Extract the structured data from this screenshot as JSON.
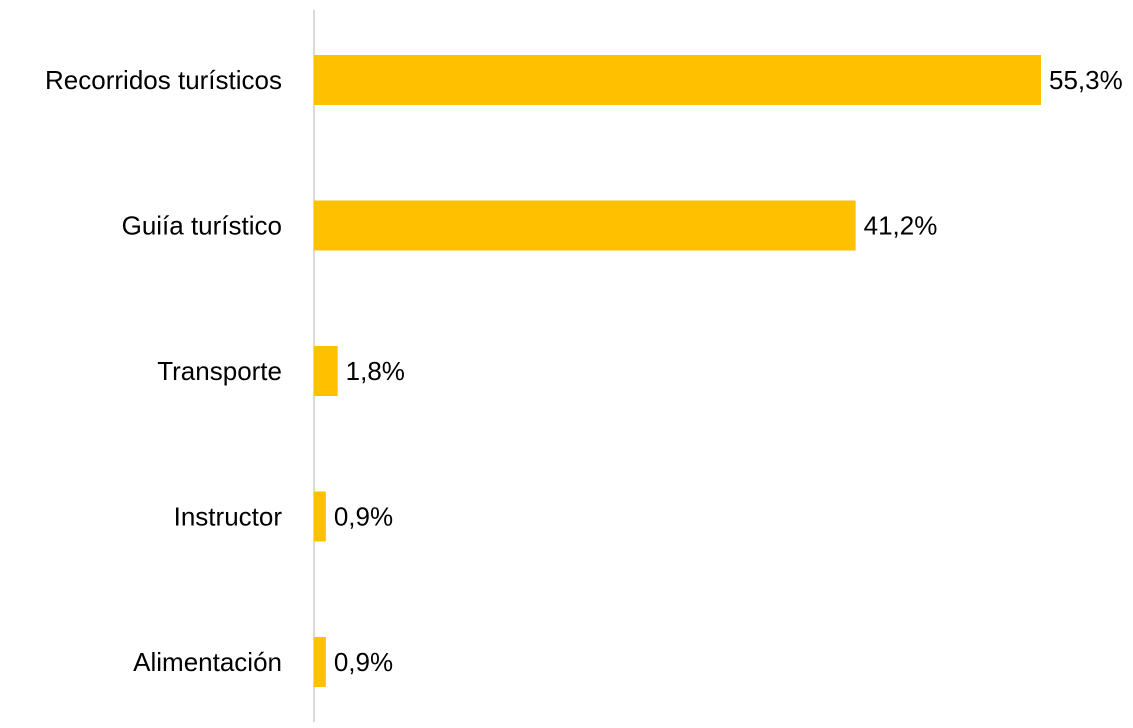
{
  "chart_data": {
    "type": "bar",
    "orientation": "horizontal",
    "categories": [
      "Recorridos turísticos",
      "Guiía turístico",
      "Transporte",
      "Instructor",
      "Alimentación"
    ],
    "values": [
      55.3,
      41.2,
      1.8,
      0.9,
      0.9
    ],
    "data_labels": [
      "55,3%",
      "41,2%",
      "1,8%",
      "0,9%",
      "0,9%"
    ],
    "title": "",
    "xlabel": "",
    "ylabel": "",
    "xlim": [
      0,
      55.3
    ],
    "grid": false,
    "legend": "none",
    "colors": {
      "bar": "#FFC000",
      "axis": "#D9D9D9",
      "text": "#000000"
    }
  }
}
